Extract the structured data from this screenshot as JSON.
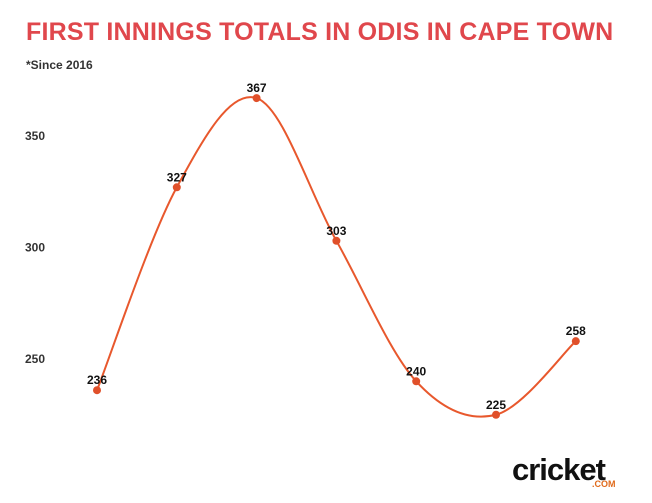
{
  "header": {
    "title": "FIRST INNINGS TOTALS IN ODIS IN CAPE TOWN",
    "subtitle": "*Since 2016"
  },
  "colors": {
    "title": "#e0474c",
    "line": "#e8582d",
    "point": "#e0502a",
    "axis_text": "#333333",
    "brand_accent": "#e06a1b"
  },
  "brand": {
    "name": "cricket",
    "suffix": ".COM"
  },
  "chart_data": {
    "type": "line",
    "x": [
      1,
      2,
      3,
      4,
      5,
      6,
      7
    ],
    "values": [
      236,
      327,
      367,
      303,
      240,
      225,
      258
    ],
    "data_labels": [
      "236",
      "327",
      "367",
      "303",
      "240",
      "225",
      "258"
    ],
    "title": "FIRST INNINGS TOTALS IN ODIS IN CAPE TOWN",
    "subtitle": "*Since 2016",
    "xlabel": "",
    "ylabel": "",
    "yticks": [
      250,
      300,
      350
    ],
    "ytick_labels": [
      "250",
      "300",
      "350"
    ],
    "ylim": [
      210,
      380
    ],
    "grid": false,
    "smooth": true
  }
}
